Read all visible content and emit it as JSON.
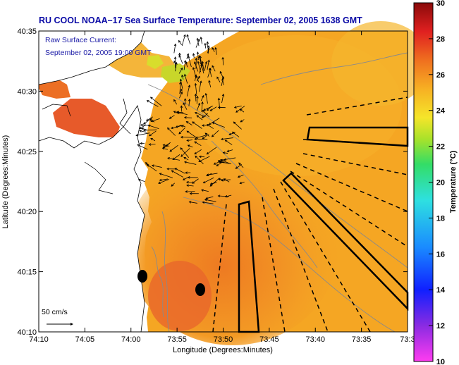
{
  "title": "RU COOL  NOAA–17  Sea Surface Temperature:  September 02, 2005 1638 GMT",
  "legend": {
    "line1": "Raw Surface Current:",
    "line2": "September 02, 2005 19:00 GMT"
  },
  "scale_label": "50 cm/s",
  "x_axis": {
    "label": "Longitude (Degrees:Minutes)",
    "ticks": [
      "74:10",
      "74:05",
      "74:00",
      "73:55",
      "73:50",
      "73:45",
      "73:40",
      "73:35",
      "73:3"
    ]
  },
  "y_axis": {
    "label": "Latitude (Degrees:Minutes)",
    "ticks": [
      "40:35",
      "40:30",
      "40:25",
      "40:20",
      "40:15",
      "40:10"
    ]
  },
  "colorbar": {
    "label": "Temperature (°C)",
    "ticks": [
      "30",
      "28",
      "26",
      "24",
      "22",
      "20",
      "18",
      "16",
      "14",
      "12",
      "10"
    ],
    "range": [
      10,
      30
    ]
  },
  "colors": {
    "title": "#0a0aa6",
    "sst_main": "#f5a623",
    "sst_warm": "#ee7a22",
    "sst_hot": "#e2582a",
    "sst_cool": "#f2c72e",
    "land": "#ffffff"
  }
}
